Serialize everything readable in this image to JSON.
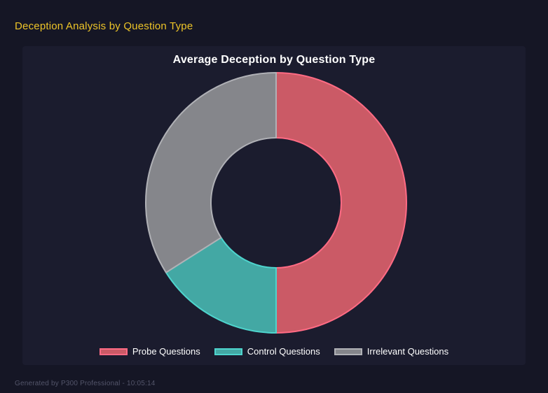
{
  "page": {
    "title": "Deception Analysis by Question Type",
    "footer": "Generated by P300 Professional - 10:05:14"
  },
  "theme": {
    "page_bg": "#151625",
    "panel_bg": "#1b1c2e",
    "page_title_color": "#edc428",
    "chart_title_color": "#ffffff",
    "legend_text_color": "#ffffff",
    "footer_color": "#53556a"
  },
  "chart_data": {
    "type": "pie",
    "subtype": "doughnut",
    "title": "Average Deception by Question Type",
    "labels": [
      "Probe Questions",
      "Control Questions",
      "Irrelevant Questions"
    ],
    "values": [
      50,
      16,
      34
    ],
    "unit": "percent_of_total",
    "start_angle_deg": 0,
    "direction": "clockwise",
    "cutout_ratio": 0.5,
    "legend_position": "bottom",
    "colors": {
      "fills": [
        "#cb5a66",
        "#43a8a4",
        "#85868b"
      ],
      "borders": [
        "#ff6b84",
        "#4ed4cd",
        "#b0b1b6"
      ]
    }
  }
}
